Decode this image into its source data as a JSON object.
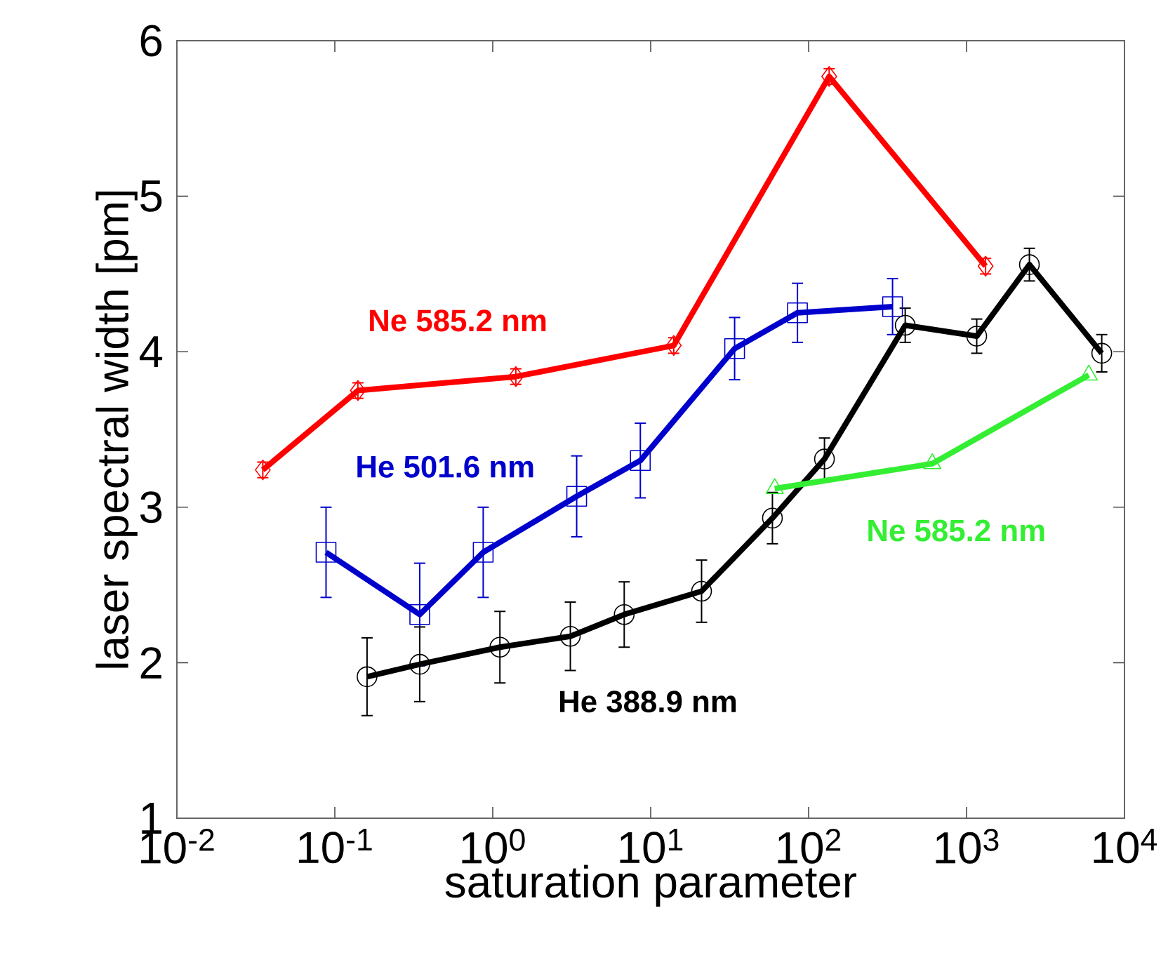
{
  "chart_data": {
    "type": "line",
    "xlabel": "saturation parameter",
    "ylabel": "laser spectral width [pm]",
    "log": "x",
    "grid": false,
    "legend": false,
    "line_style": "solid",
    "xlim": [
      0.01,
      10000
    ],
    "ylim": [
      1,
      6
    ],
    "xticks": [
      {
        "value": 0.01,
        "label": "10$^{-2}$"
      },
      {
        "value": 0.1,
        "label": "10$^{-1}$"
      },
      {
        "value": 1,
        "label": "10$^{0}$"
      },
      {
        "value": 10,
        "label": "10$^{1}$"
      },
      {
        "value": 100,
        "label": "10$^{2}$"
      },
      {
        "value": 1000,
        "label": "10$^{3}$"
      },
      {
        "value": 10000,
        "label": "10$^{4}$"
      }
    ],
    "yticks": [
      1,
      2,
      3,
      4,
      5,
      6
    ],
    "series": [
      {
        "name": "Ne 585.2 nm",
        "color": "#ff0000",
        "marker": "diamond",
        "x": [
          0.035,
          0.14,
          1.4,
          14,
          135,
          1320
        ],
        "values": [
          3.24,
          3.75,
          3.84,
          4.04,
          5.77,
          4.55
        ],
        "errors": [
          0.05,
          0.05,
          0.05,
          0.05,
          0.05,
          0.05
        ]
      },
      {
        "name": "He 501.6 nm",
        "color": "#0000cc",
        "marker": "square",
        "x": [
          0.088,
          0.345,
          0.87,
          3.4,
          8.6,
          34,
          85,
          340
        ],
        "values": [
          2.71,
          2.31,
          2.71,
          3.07,
          3.3,
          4.02,
          4.25,
          4.29
        ],
        "errors": [
          0.29,
          0.33,
          0.29,
          0.26,
          0.24,
          0.2,
          0.19,
          0.18
        ]
      },
      {
        "name": "He 388.9 nm",
        "color": "#000000",
        "marker": "circle",
        "x": [
          0.16,
          0.345,
          1.11,
          3.1,
          6.8,
          21,
          59,
          126,
          409,
          1160,
          2500,
          7180
        ],
        "values": [
          1.91,
          1.99,
          2.1,
          2.17,
          2.31,
          2.46,
          2.93,
          3.31,
          4.17,
          4.1,
          4.56,
          3.99
        ],
        "errors": [
          0.25,
          0.24,
          0.23,
          0.22,
          0.21,
          0.2,
          0.165,
          0.135,
          0.11,
          0.11,
          0.105,
          0.12
        ]
      },
      {
        "name": "Ne 585.2 nm",
        "color": "#33ee33",
        "marker": "triangle",
        "x": [
          61,
          607,
          5940
        ],
        "values": [
          3.12,
          3.28,
          3.85
        ]
      }
    ]
  }
}
